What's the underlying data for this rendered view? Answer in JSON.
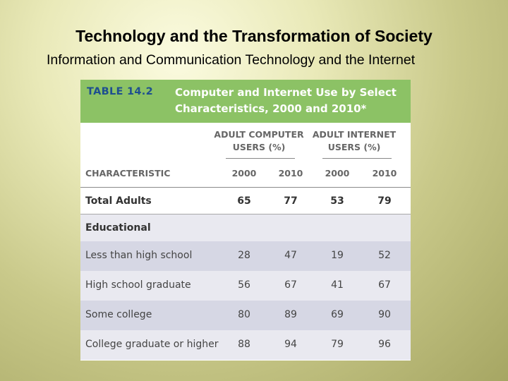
{
  "slide": {
    "title": "Technology and the Transformation of Society",
    "subtitle": "Information and Communication Technology and the Internet"
  },
  "table": {
    "number": "TABLE 14.2",
    "title": "Computer and Internet Use by Select Characteristics, 2000 and 2010*",
    "groups": [
      {
        "label": "ADULT COMPUTER USERS (%)"
      },
      {
        "label": "ADULT INTERNET USERS (%)"
      }
    ],
    "columns": {
      "characteristic": "CHARACTERISTIC",
      "c1": "2000",
      "c2": "2010",
      "c3": "2000",
      "c4": "2010"
    },
    "rows": [
      {
        "label": "Total Adults",
        "values": [
          "65",
          "77",
          "53",
          "79"
        ]
      },
      {
        "label": "Educational",
        "values": [
          "",
          "",
          "",
          ""
        ]
      },
      {
        "label": "Less than high school",
        "values": [
          "28",
          "47",
          "19",
          "52"
        ]
      },
      {
        "label": "High school graduate",
        "values": [
          "56",
          "67",
          "41",
          "67"
        ]
      },
      {
        "label": "Some college",
        "values": [
          "80",
          "89",
          "69",
          "90"
        ]
      },
      {
        "label": "College graduate or higher",
        "values": [
          "88",
          "94",
          "79",
          "96"
        ]
      }
    ]
  }
}
